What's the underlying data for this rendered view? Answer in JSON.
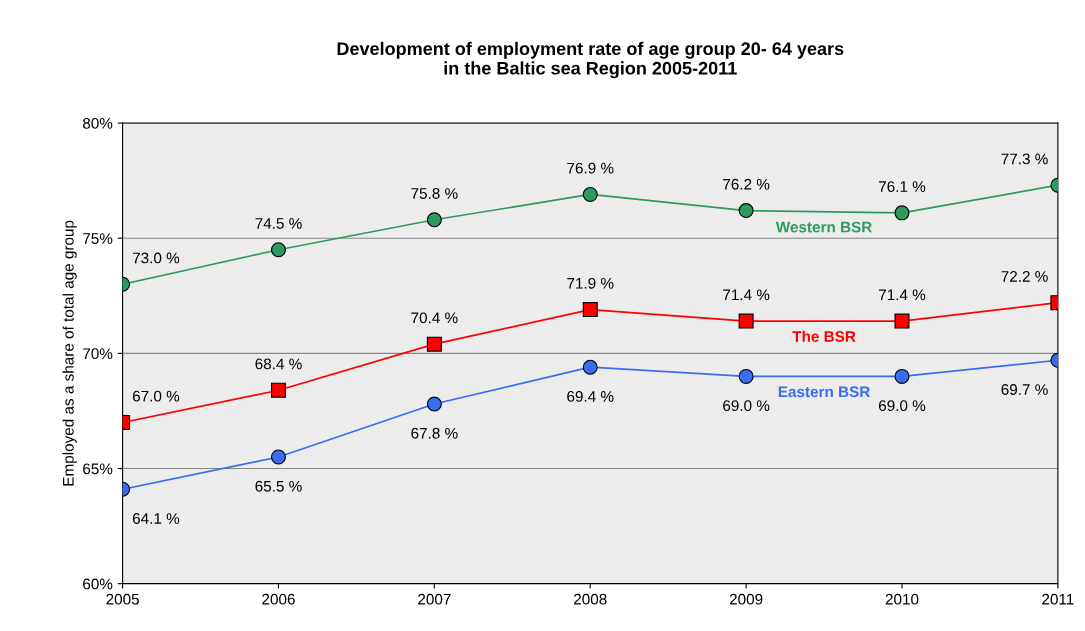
{
  "chart_data": {
    "type": "line",
    "title": "Development of employment rate of age group 20- 64 years\nin the Baltic sea Region 2005-2011",
    "ylabel": "Employed as a share of total age group",
    "x": [
      2005,
      2006,
      2007,
      2008,
      2009,
      2010,
      2011
    ],
    "xlim": [
      2005,
      2011
    ],
    "xticks": [
      2005,
      2006,
      2007,
      2008,
      2009,
      2010,
      2011
    ],
    "ylim": [
      60,
      80
    ],
    "yticks": [
      {
        "value": 60,
        "label": "60%"
      },
      {
        "value": 65,
        "label": "65%"
      },
      {
        "value": 70,
        "label": "70%"
      },
      {
        "value": 75,
        "label": "75%"
      },
      {
        "value": 80,
        "label": "80%"
      }
    ],
    "grid": "y",
    "line_style": "solid",
    "series": [
      {
        "name": "Western BSR",
        "color": "#2e9a5e",
        "marker": "circle",
        "values": [
          73.0,
          74.5,
          75.8,
          76.9,
          76.2,
          76.1,
          77.3
        ],
        "value_labels": [
          "73.0 %",
          "74.5 %",
          "75.8 %",
          "76.9 %",
          "76.2 %",
          "76.1 %",
          "77.3 %"
        ]
      },
      {
        "name": "The BSR",
        "color": "#ff0000",
        "marker": "square",
        "values": [
          67.0,
          68.4,
          70.4,
          71.9,
          71.4,
          71.4,
          72.2
        ],
        "value_labels": [
          "67.0 %",
          "68.4 %",
          "70.4 %",
          "71.9 %",
          "71.4 %",
          "71.4 %",
          "72.2 %"
        ]
      },
      {
        "name": "Eastern BSR",
        "color": "#3a6cf0",
        "marker": "circle",
        "values": [
          64.1,
          65.5,
          67.8,
          69.4,
          69.0,
          69.0,
          69.7
        ],
        "value_labels": [
          "64.1 %",
          "65.5 %",
          "67.8 %",
          "69.4 %",
          "69.0 %",
          "69.0 %",
          "69.7 %"
        ]
      }
    ]
  }
}
